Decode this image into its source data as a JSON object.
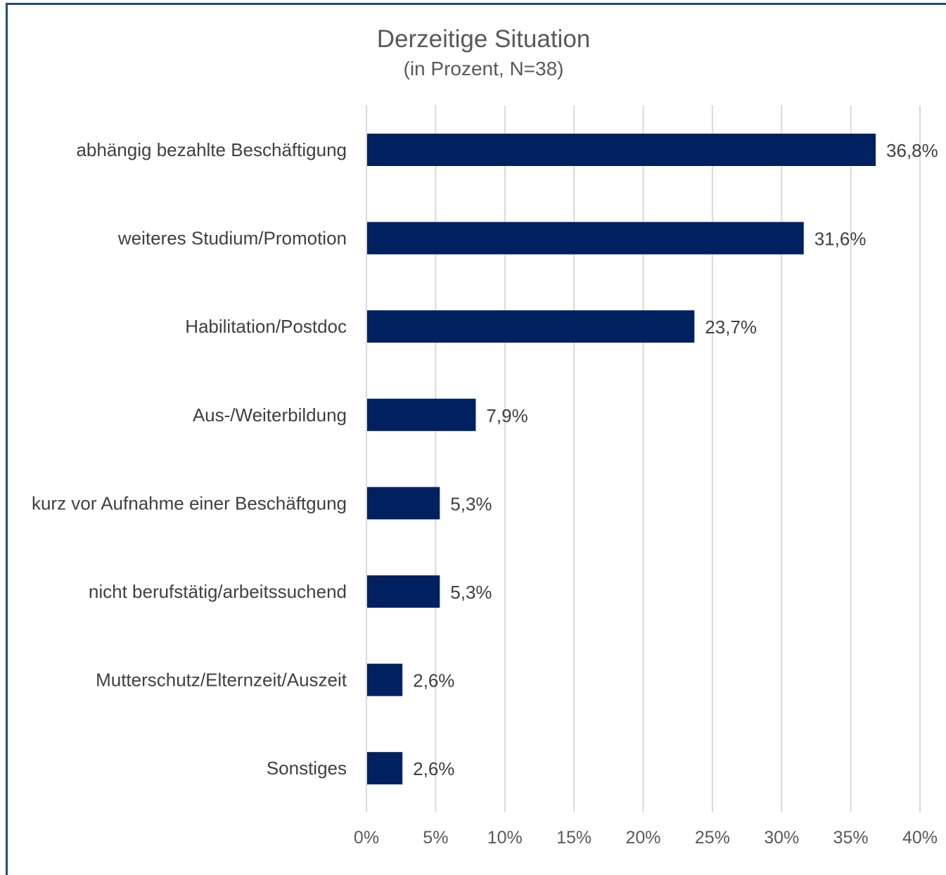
{
  "chart_data": {
    "type": "bar",
    "orientation": "horizontal",
    "title": "Derzeitige Situation",
    "subtitle": "(in Prozent, N=38)",
    "categories": [
      "abhängig bezahlte Beschäftigung",
      "weiteres Studium/Promotion",
      "Habilitation/Postdoc",
      "Aus-/Weiterbildung",
      "kurz vor Aufnahme einer Beschäftgung",
      "nicht berufstätig/arbeitssuchend",
      "Mutterschutz/Elternzeit/Auszeit",
      "Sonstiges"
    ],
    "values": [
      36.8,
      31.6,
      23.7,
      7.9,
      5.3,
      5.3,
      2.6,
      2.6
    ],
    "value_labels": [
      "36,8%",
      "31,6%",
      "23,7%",
      "7,9%",
      "5,3%",
      "5,3%",
      "2,6%",
      "2,6%"
    ],
    "xlim": [
      0,
      40
    ],
    "x_ticks": [
      0,
      5,
      10,
      15,
      20,
      25,
      30,
      35,
      40
    ],
    "x_tick_labels": [
      "0%",
      "5%",
      "10%",
      "15%",
      "20%",
      "25%",
      "30%",
      "35%",
      "40%"
    ],
    "grid": true,
    "bar_color": "#002060",
    "grid_color": "#d9d9d9",
    "frame_color": "#1f4e79"
  }
}
